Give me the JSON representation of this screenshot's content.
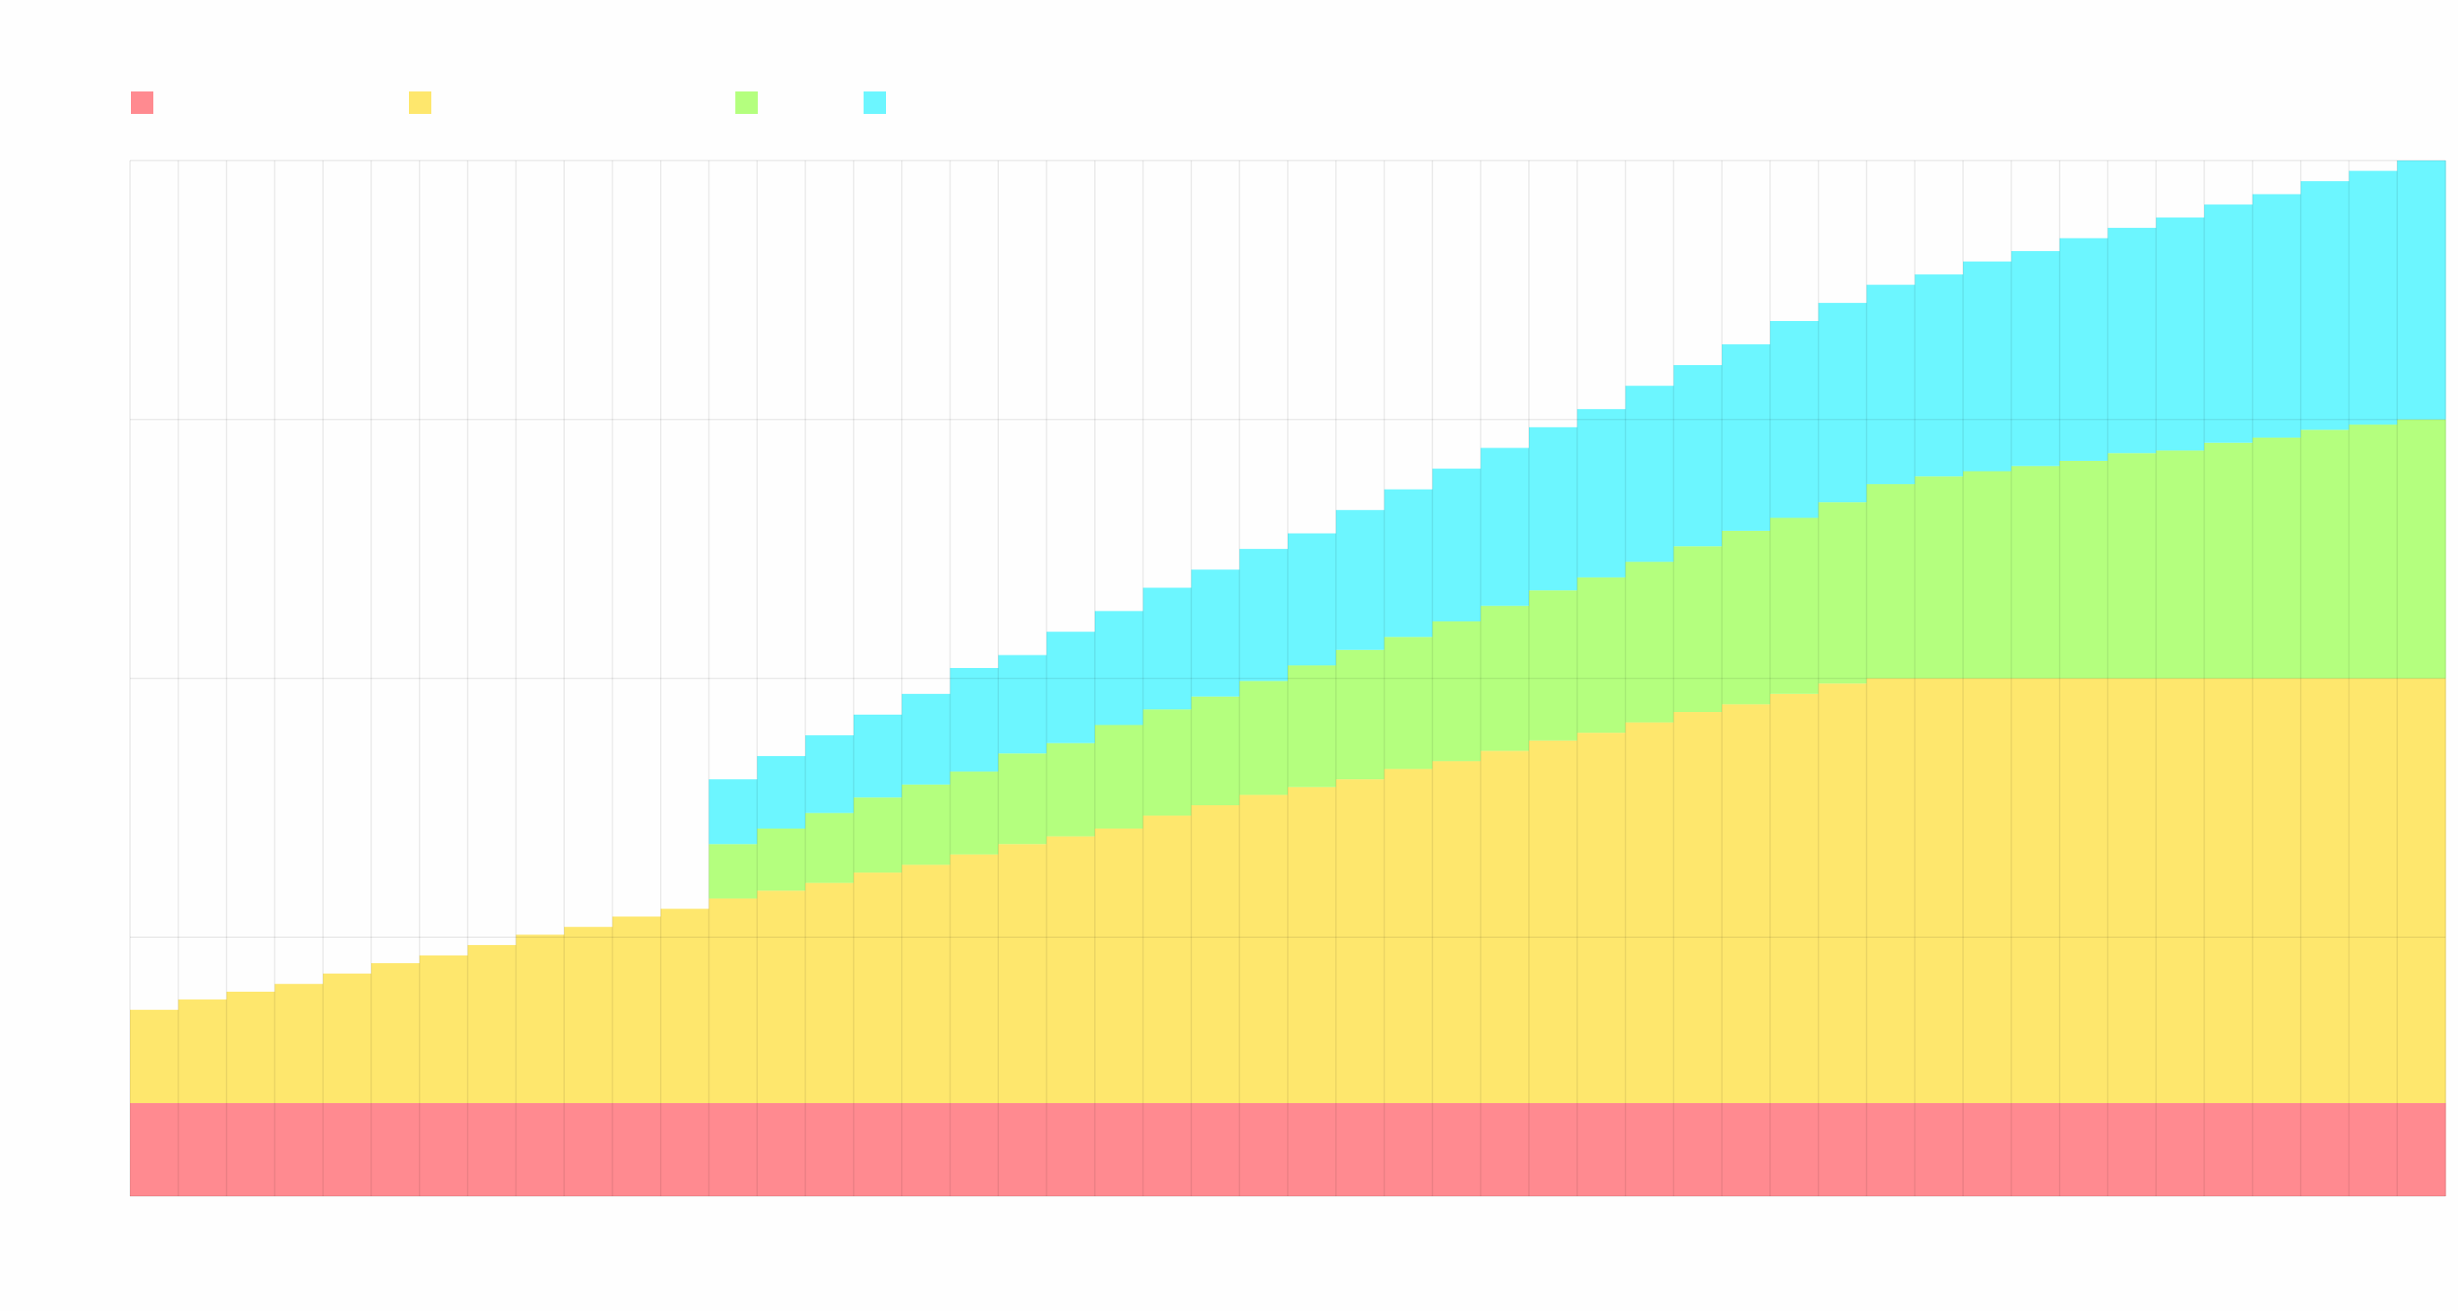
{
  "chart_data": {
    "type": "bar",
    "stacked": true,
    "step_style": "adjacent bars, no gaps",
    "title": "",
    "xlabel": "",
    "ylabel": "",
    "ylim": [
      0,
      4
    ],
    "grid": true,
    "legend": "top-left",
    "legend_labels_visible": false,
    "bar_count": 48,
    "series": [
      {
        "color": "#ff8a90",
        "values": [
          0.36,
          0.36,
          0.36,
          0.36,
          0.36,
          0.36,
          0.36,
          0.36,
          0.36,
          0.36,
          0.36,
          0.36,
          0.36,
          0.36,
          0.36,
          0.36,
          0.36,
          0.36,
          0.36,
          0.36,
          0.36,
          0.36,
          0.36,
          0.36,
          0.36,
          0.36,
          0.36,
          0.36,
          0.36,
          0.36,
          0.36,
          0.36,
          0.36,
          0.36,
          0.36,
          0.36,
          0.36,
          0.36,
          0.36,
          0.36,
          0.36,
          0.36,
          0.36,
          0.36,
          0.36,
          0.36,
          0.36,
          0.36
        ]
      },
      {
        "color": "#fee76d",
        "values": [
          0.36,
          0.4,
          0.43,
          0.46,
          0.5,
          0.54,
          0.57,
          0.61,
          0.65,
          0.68,
          0.72,
          0.75,
          0.79,
          0.82,
          0.85,
          0.89,
          0.92,
          0.96,
          1.0,
          1.03,
          1.06,
          1.11,
          1.15,
          1.19,
          1.22,
          1.25,
          1.29,
          1.32,
          1.36,
          1.4,
          1.43,
          1.47,
          1.51,
          1.54,
          1.58,
          1.62,
          1.64,
          1.64,
          1.64,
          1.64,
          1.64,
          1.64,
          1.64,
          1.64,
          1.64,
          1.64,
          1.64,
          1.64
        ]
      },
      {
        "color": "#b4ff7e",
        "values": [
          0,
          0,
          0,
          0,
          0,
          0,
          0,
          0,
          0,
          0,
          0,
          0,
          0.21,
          0.24,
          0.27,
          0.29,
          0.31,
          0.32,
          0.35,
          0.36,
          0.4,
          0.41,
          0.42,
          0.44,
          0.47,
          0.5,
          0.51,
          0.54,
          0.56,
          0.58,
          0.6,
          0.62,
          0.64,
          0.67,
          0.68,
          0.7,
          0.75,
          0.78,
          0.8,
          0.82,
          0.84,
          0.87,
          0.88,
          0.91,
          0.93,
          0.96,
          0.98,
          1.0
        ]
      },
      {
        "color": "#6cf6ff",
        "values": [
          0,
          0,
          0,
          0,
          0,
          0,
          0,
          0,
          0,
          0,
          0,
          0,
          0.25,
          0.28,
          0.3,
          0.32,
          0.35,
          0.4,
          0.38,
          0.43,
          0.44,
          0.47,
          0.49,
          0.51,
          0.51,
          0.54,
          0.57,
          0.59,
          0.61,
          0.63,
          0.65,
          0.68,
          0.7,
          0.72,
          0.76,
          0.77,
          0.77,
          0.78,
          0.81,
          0.83,
          0.86,
          0.87,
          0.9,
          0.92,
          0.94,
          0.96,
          0.98,
          1.0
        ]
      }
    ]
  }
}
